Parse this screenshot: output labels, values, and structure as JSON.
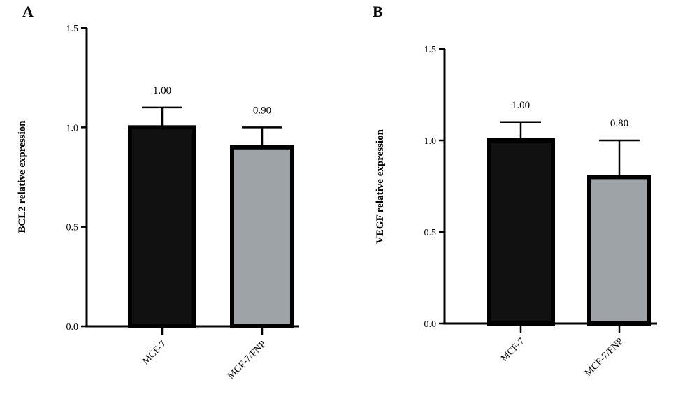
{
  "chart_data": [
    {
      "type": "bar",
      "panel": "A",
      "title": "",
      "xlabel": "",
      "ylabel": "BCL2 relative expression",
      "categories": [
        "MCF-7",
        "MCF-7/FNP"
      ],
      "values": [
        1.0,
        0.9
      ],
      "error": [
        0.1,
        0.1
      ],
      "data_labels": [
        "1.00",
        "0.90"
      ],
      "ylim": [
        0,
        1.5
      ],
      "yticks": [
        0.0,
        0.5,
        1.0,
        1.5
      ],
      "ytick_labels": [
        "0.0",
        "0.5",
        "1.0",
        "1.5"
      ],
      "colors": [
        "#111111",
        "#9ea3a8"
      ],
      "grid": false
    },
    {
      "type": "bar",
      "panel": "B",
      "title": "",
      "xlabel": "",
      "ylabel": "VEGF relative expression",
      "categories": [
        "MCF-7",
        "MCF-7/FNP"
      ],
      "values": [
        1.0,
        0.8
      ],
      "error": [
        0.1,
        0.2
      ],
      "data_labels": [
        "1.00",
        "0.80"
      ],
      "ylim": [
        0,
        1.5
      ],
      "yticks": [
        0.0,
        0.5,
        1.0,
        1.5
      ],
      "ytick_labels": [
        "0.0",
        "0.5",
        "1.0",
        "1.5"
      ],
      "colors": [
        "#111111",
        "#9ea3a8"
      ],
      "grid": false
    }
  ]
}
